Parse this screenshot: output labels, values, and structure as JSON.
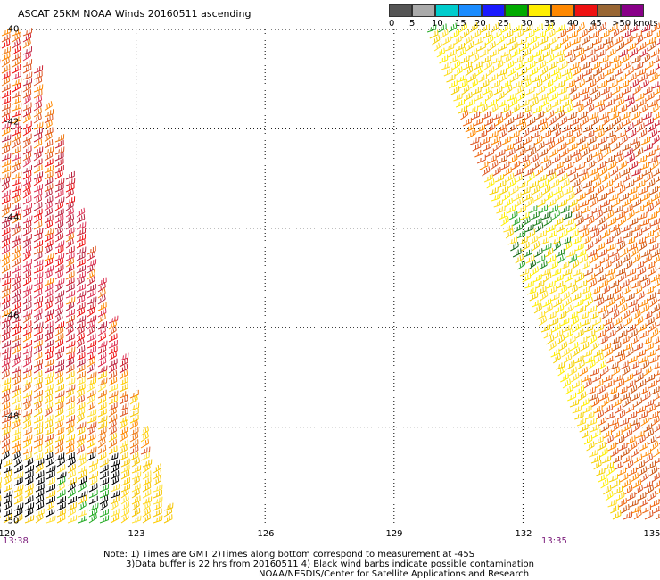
{
  "title": "ASCAT 25KM NOAA Winds 20160511 ascending",
  "legend": {
    "colors": [
      "#555555",
      "#aaaaaa",
      "#00cccc",
      "#1a8cff",
      "#1a1aff",
      "#00aa00",
      "#bbcc00",
      "#ffee00",
      "#ffcc00",
      "#ff8800",
      "#dd4422",
      "#ee1111",
      "#cc2233",
      "#996633",
      "#aa22dd",
      "#cc00ff",
      "#880088"
    ],
    "labels": [
      "0",
      "5",
      "10",
      "15",
      "20",
      "25",
      "30",
      "35",
      "40",
      "45",
      ">50 knots"
    ]
  },
  "axes": {
    "x_ticks": [
      "120",
      "123",
      "126",
      "129",
      "132",
      "135"
    ],
    "y_ticks": [
      "-40",
      "-42",
      "-44",
      "-46",
      "-48",
      "-50"
    ],
    "x_range": [
      120,
      135
    ],
    "y_range": [
      -40,
      -50
    ]
  },
  "swath_times": [
    "13:38",
    "13:35"
  ],
  "notes": [
    "Note: 1) Times are GMT 2)Times along bottom correspond to measurement at -45S",
    "3)Data buffer is 22 hrs from 20160511 4) Black wind barbs indicate possible contamination",
    "NOAA/NESDIS/Center for Satellite Applications and Research"
  ]
}
